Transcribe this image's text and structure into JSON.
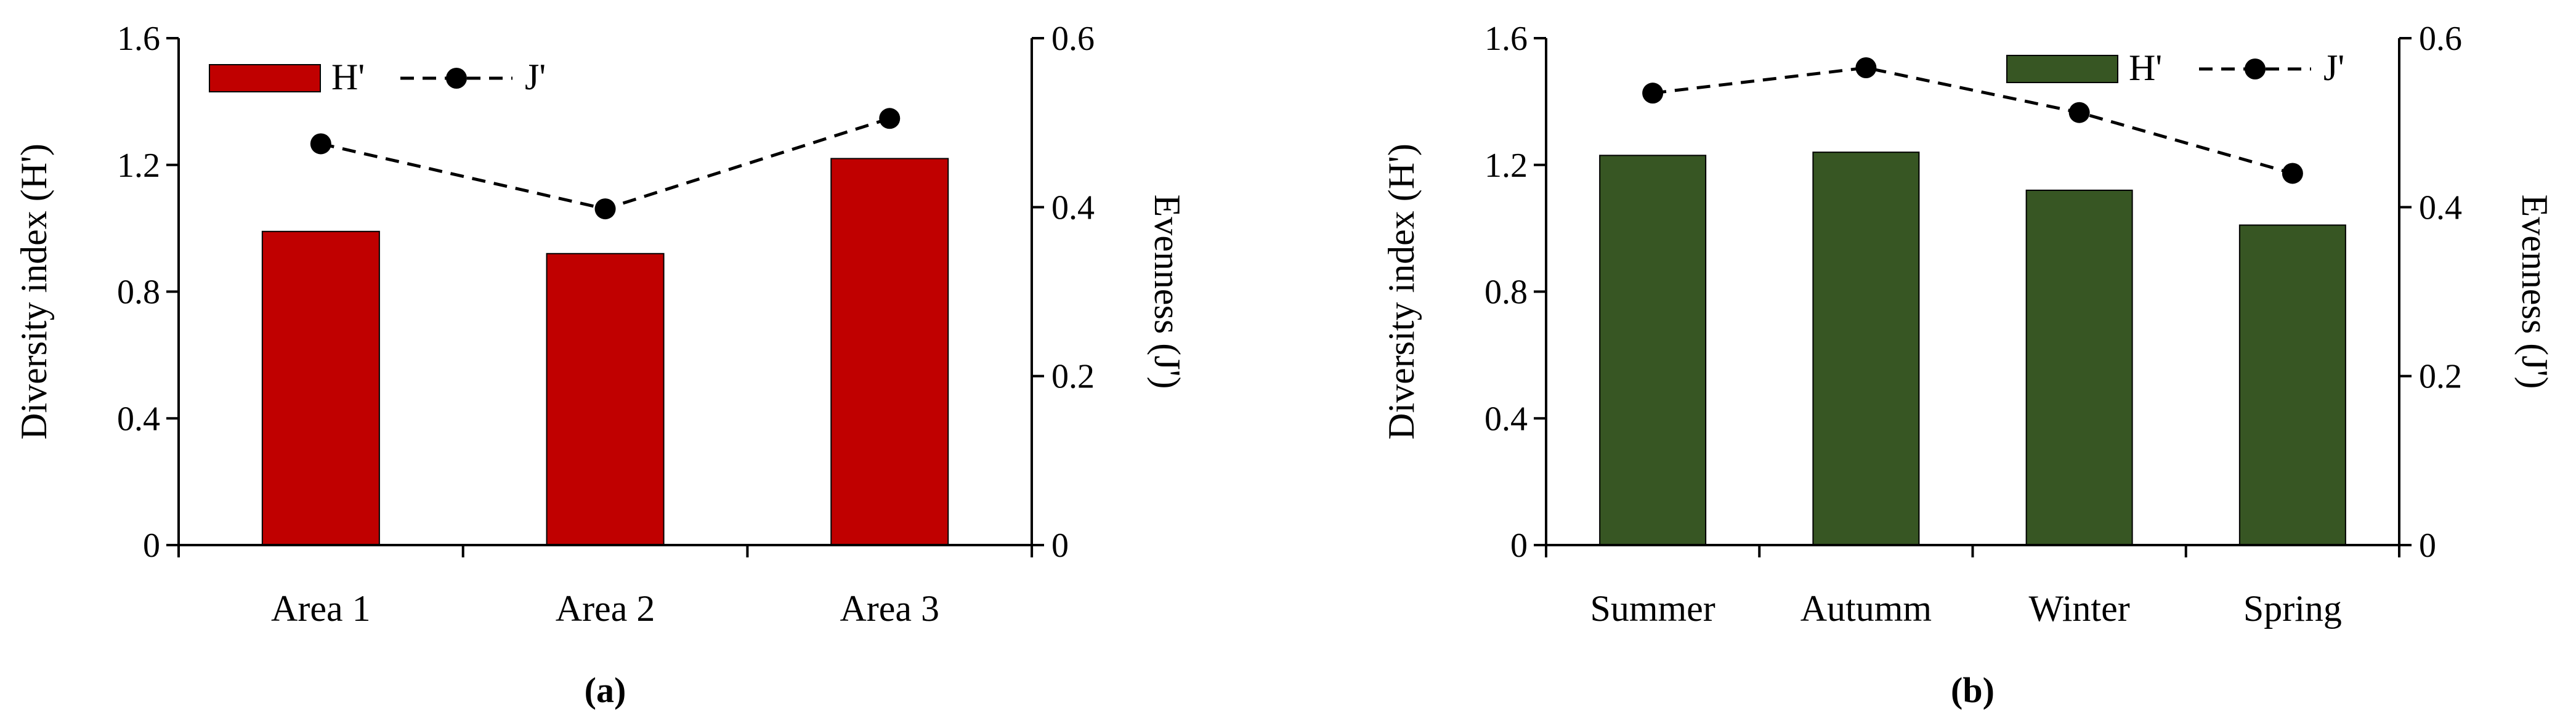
{
  "chart_data": [
    {
      "type": "bar",
      "panel_label": "(a)",
      "categories": [
        "Area 1",
        "Area 2",
        "Area 3"
      ],
      "series": [
        {
          "name": "H'",
          "axis": "left",
          "type": "bar",
          "color": "#c00000",
          "values": [
            0.99,
            0.92,
            1.22
          ]
        },
        {
          "name": "J'",
          "axis": "right",
          "type": "line",
          "style": "dashed",
          "marker": "circle",
          "color": "#000000",
          "values": [
            0.475,
            0.398,
            0.505
          ]
        }
      ],
      "ylabel": "Diversity index (H')",
      "y2label": "Evenness (J')",
      "ylim": [
        0,
        1.6
      ],
      "yticks": [
        "0",
        "0.4",
        "0.8",
        "1.2",
        "1.6"
      ],
      "y2lim": [
        0,
        0.6
      ],
      "y2ticks": [
        "0",
        "0.2",
        "0.4",
        "0.6"
      ],
      "grid": false,
      "legend": "top-left"
    },
    {
      "type": "bar",
      "panel_label": "(b)",
      "categories": [
        "Summer",
        "Autumm",
        "Winter",
        "Spring"
      ],
      "series": [
        {
          "name": "H'",
          "axis": "left",
          "type": "bar",
          "color": "#375623",
          "values": [
            1.23,
            1.24,
            1.12,
            1.01
          ]
        },
        {
          "name": "J'",
          "axis": "right",
          "type": "line",
          "style": "dashed",
          "marker": "circle",
          "color": "#000000",
          "values": [
            0.535,
            0.565,
            0.512,
            0.44
          ]
        }
      ],
      "ylabel": "Diversity index (H')",
      "y2label": "Evenness (J')",
      "ylim": [
        0,
        1.6
      ],
      "yticks": [
        "0",
        "0.4",
        "0.8",
        "1.2",
        "1.6"
      ],
      "y2lim": [
        0,
        0.6
      ],
      "y2ticks": [
        "0",
        "0.2",
        "0.4",
        "0.6"
      ],
      "grid": false,
      "legend": "top-right"
    }
  ]
}
